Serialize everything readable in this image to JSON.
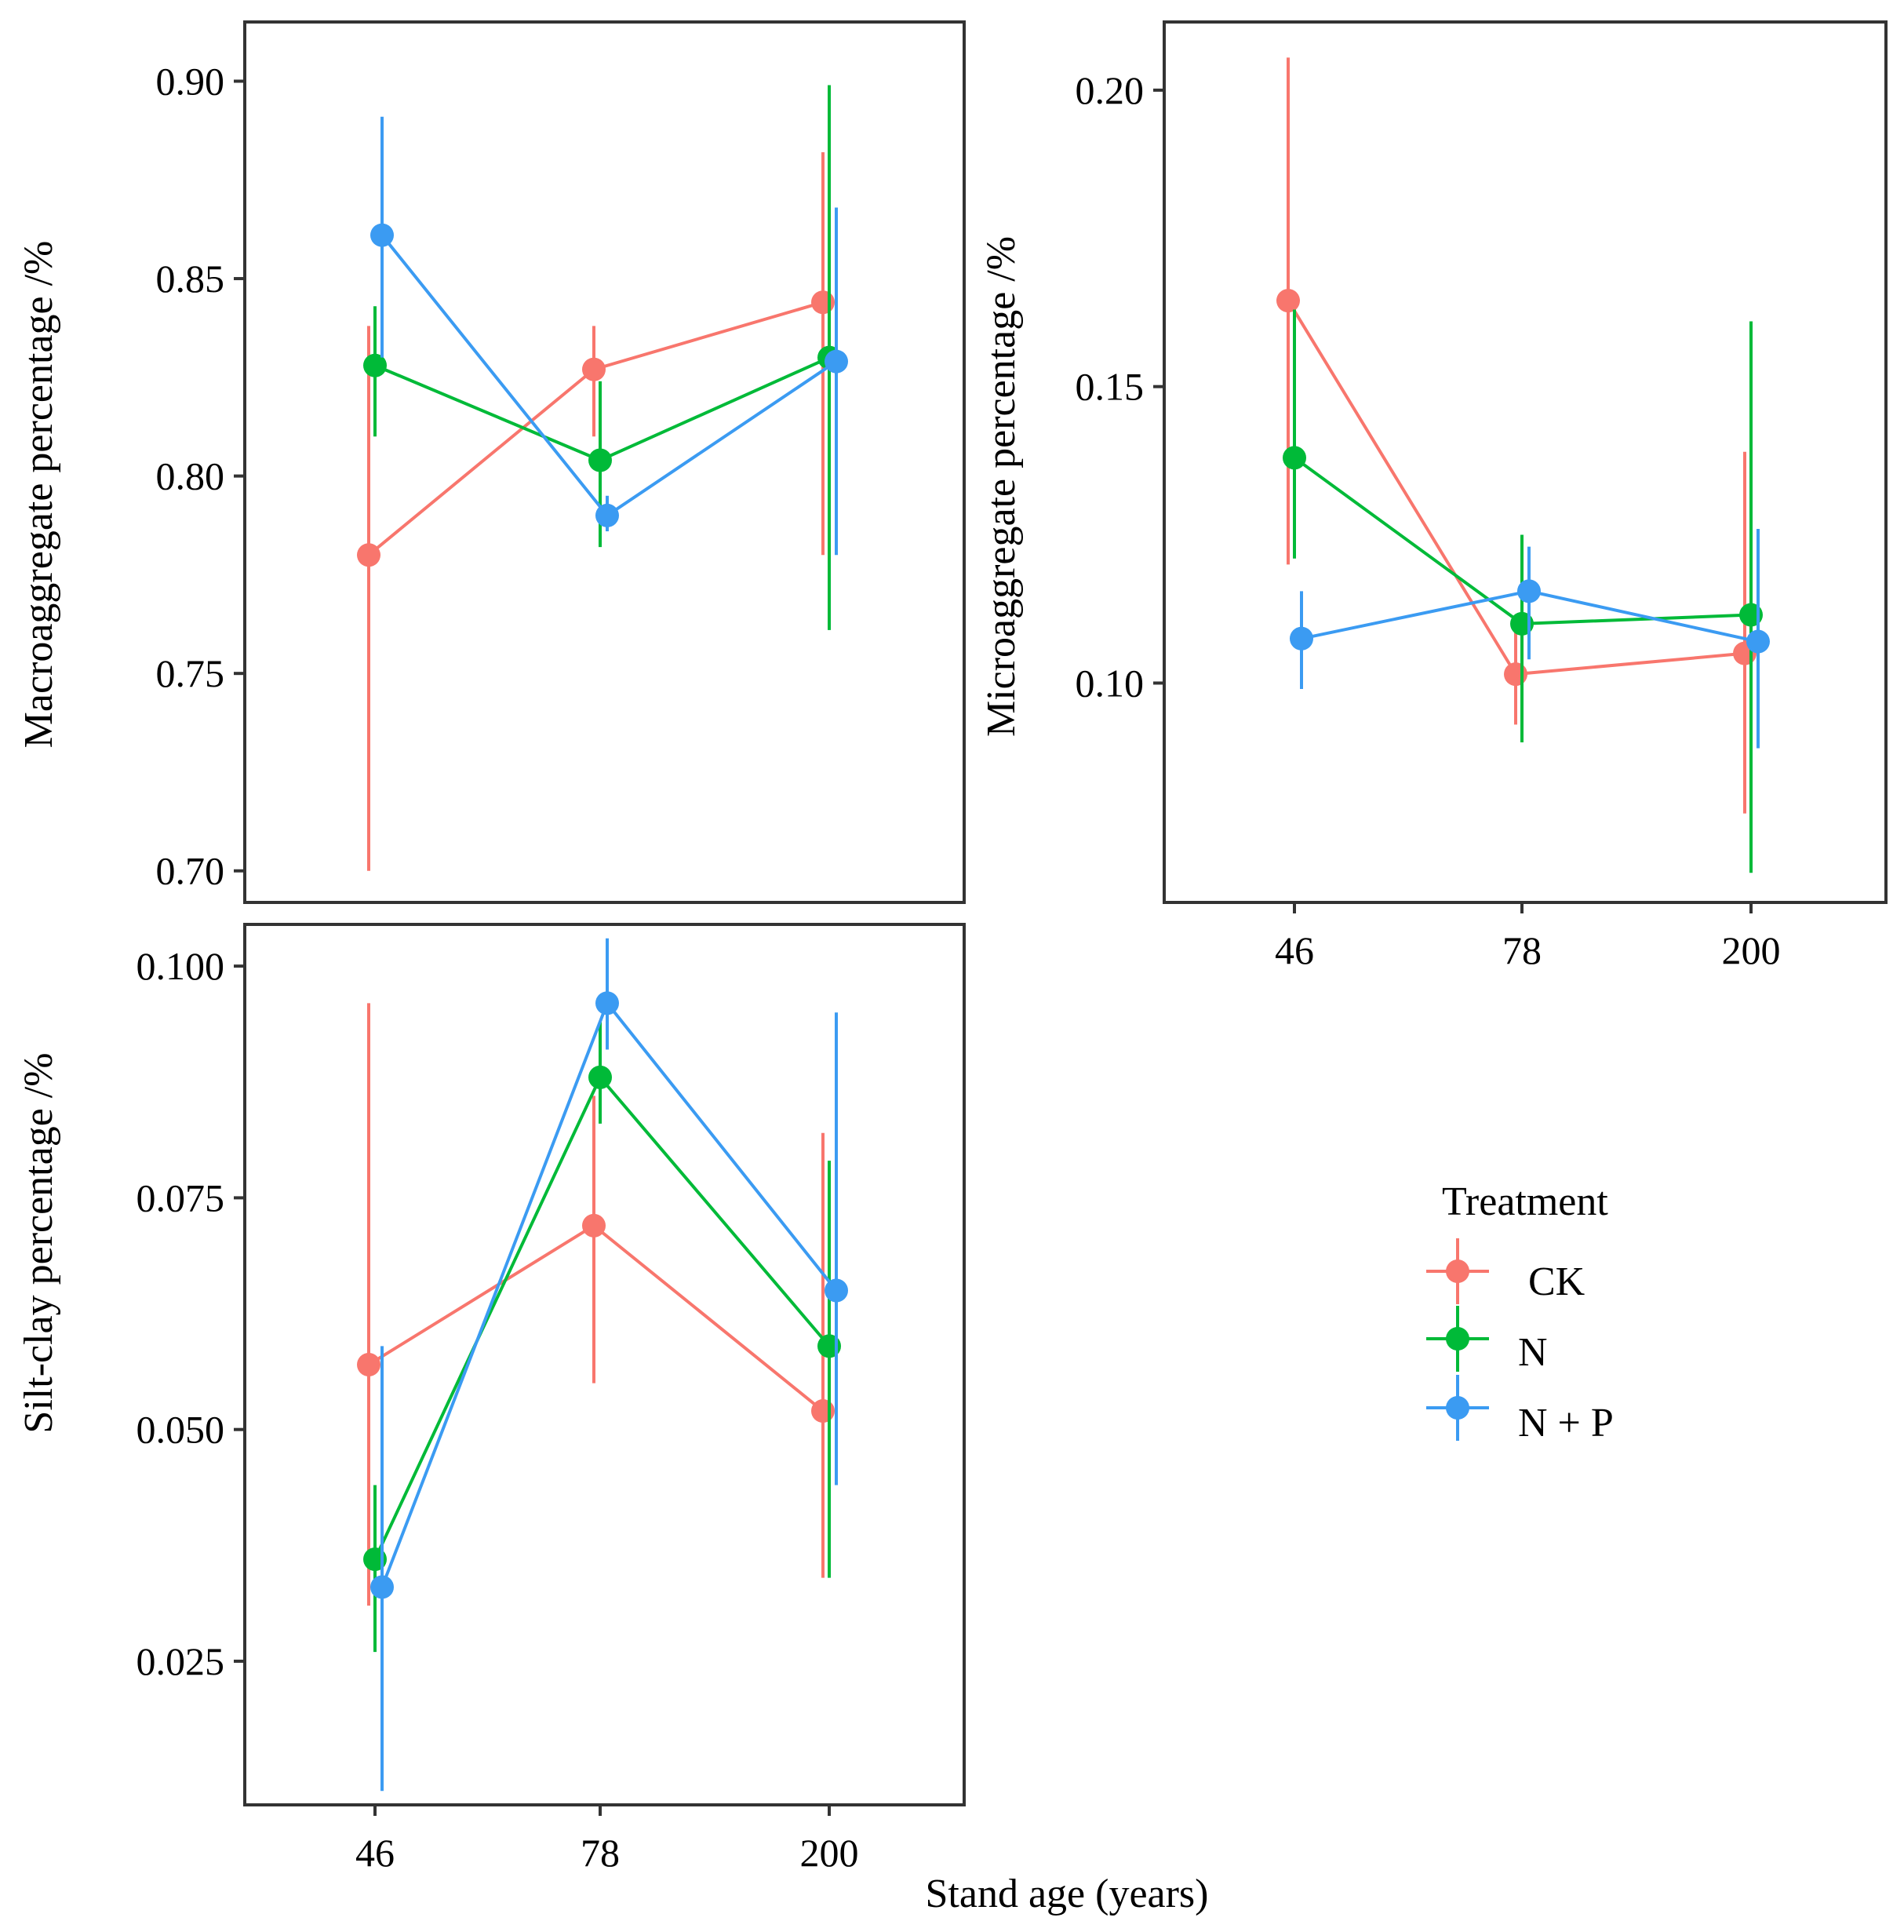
{
  "treatments": [
    {
      "key": "CK",
      "label": " CK",
      "color": "#F8766D"
    },
    {
      "key": "N",
      "label": "N",
      "color": "#00BA38"
    },
    {
      "key": "NP",
      "label": "N + P",
      "color": "#3B9BF2"
    }
  ],
  "legend": {
    "title": "Treatment"
  },
  "shared": {
    "xlabel": "Stand age (years)",
    "categories": [
      "46",
      "78",
      "200"
    ]
  },
  "chart_data": [
    {
      "type": "line",
      "title": "",
      "ylabel": "Macroaggregate percentage /%",
      "xlabel": "",
      "categories": [
        "46",
        "78",
        "200"
      ],
      "ylim": [
        0.692,
        0.915
      ],
      "yticks": [
        0.7,
        0.75,
        0.8,
        0.85,
        0.9
      ],
      "ytick_labels": [
        "0.70",
        "0.75",
        "0.80",
        "0.85",
        "0.90"
      ],
      "show_x_ticks": false,
      "series": [
        {
          "name": "CK",
          "values": [
            0.78,
            0.827,
            0.844
          ],
          "lower": [
            0.7,
            0.81,
            0.78
          ],
          "upper": [
            0.838,
            0.838,
            0.882
          ]
        },
        {
          "name": "N",
          "values": [
            0.828,
            0.804,
            0.83
          ],
          "lower": [
            0.81,
            0.782,
            0.761
          ],
          "upper": [
            0.843,
            0.824,
            0.899
          ]
        },
        {
          "name": "N + P",
          "values": [
            0.861,
            0.79,
            0.829
          ],
          "lower": [
            0.83,
            0.786,
            0.78
          ],
          "upper": [
            0.891,
            0.795,
            0.868
          ]
        }
      ]
    },
    {
      "type": "line",
      "title": "",
      "ylabel": "Microaggregate percentage /%",
      "xlabel": "",
      "categories": [
        "46",
        "78",
        "200"
      ],
      "ylim": [
        0.063,
        0.2115
      ],
      "yticks": [
        0.1,
        0.15,
        0.2
      ],
      "ytick_labels": [
        "0.10",
        "0.15",
        "0.20"
      ],
      "show_x_ticks": true,
      "series": [
        {
          "name": "CK",
          "values": [
            0.1645,
            0.1015,
            0.105
          ],
          "lower": [
            0.12,
            0.093,
            0.078
          ],
          "upper": [
            0.2055,
            0.111,
            0.139
          ]
        },
        {
          "name": "N",
          "values": [
            0.138,
            0.11,
            0.1115
          ],
          "lower": [
            0.121,
            0.09,
            0.068
          ],
          "upper": [
            0.163,
            0.125,
            0.161
          ]
        },
        {
          "name": "N + P",
          "values": [
            0.1075,
            0.1155,
            0.107
          ],
          "lower": [
            0.099,
            0.104,
            0.089
          ],
          "upper": [
            0.1155,
            0.123,
            0.126
          ]
        }
      ]
    },
    {
      "type": "line",
      "title": "",
      "ylabel": "Silt-clay percentage /%",
      "xlabel": "Stand age (years)",
      "categories": [
        "46",
        "78",
        "200"
      ],
      "ylim": [
        0.0095,
        0.1045
      ],
      "yticks": [
        0.025,
        0.05,
        0.075,
        0.1
      ],
      "ytick_labels": [
        "0.025",
        "0.050",
        "0.075",
        "0.100"
      ],
      "show_x_ticks": true,
      "series": [
        {
          "name": "CK",
          "values": [
            0.057,
            0.072,
            0.052
          ],
          "lower": [
            0.031,
            0.055,
            0.034
          ],
          "upper": [
            0.096,
            0.086,
            0.082
          ]
        },
        {
          "name": "N",
          "values": [
            0.036,
            0.088,
            0.059
          ],
          "lower": [
            0.026,
            0.083,
            0.034
          ],
          "upper": [
            0.044,
            0.094,
            0.079
          ]
        },
        {
          "name": "N + P",
          "values": [
            0.033,
            0.096,
            0.065
          ],
          "lower": [
            0.011,
            0.091,
            0.044
          ],
          "upper": [
            0.059,
            0.103,
            0.095
          ]
        }
      ]
    }
  ]
}
